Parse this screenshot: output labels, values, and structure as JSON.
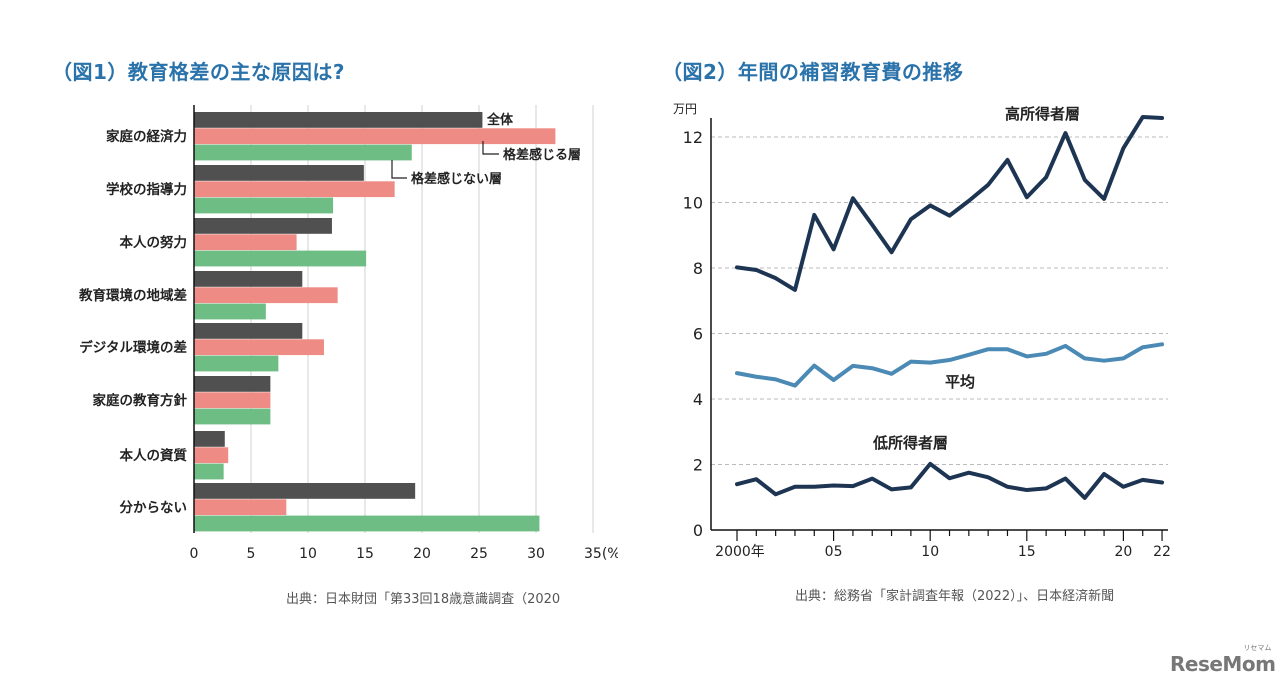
{
  "chart_data": [
    {
      "type": "bar",
      "orientation": "horizontal",
      "title": "（図1）教育格差の主な原因は?",
      "categories": [
        "家庭の経済力",
        "学校の指導力",
        "本人の努力",
        "教育環境の地域差",
        "デジタル環境の差",
        "家庭の教育方針",
        "本人の資質",
        "分からない"
      ],
      "series": [
        {
          "name": "全体",
          "color": "#505050",
          "values": [
            25.3,
            14.9,
            12.1,
            9.5,
            9.5,
            6.7,
            2.7,
            19.4
          ]
        },
        {
          "name": "格差感じる層",
          "color": "#ee8b84",
          "values": [
            31.7,
            17.6,
            9.0,
            12.6,
            11.4,
            6.7,
            3.0,
            8.1
          ]
        },
        {
          "name": "格差感じない層",
          "color": "#6dbd84",
          "values": [
            19.1,
            12.2,
            15.1,
            6.3,
            7.4,
            6.7,
            2.6,
            30.3
          ]
        }
      ],
      "xticks": [
        "0",
        "5",
        "10",
        "15",
        "20",
        "25",
        "30",
        "35(%)"
      ],
      "xlim": [
        0,
        35
      ],
      "unit": "%",
      "grid": true,
      "source": "出典：日本財団「第33回18歳意識調査（2020"
    },
    {
      "type": "line",
      "title": "（図2）年間の補習教育費の推移",
      "ylabel": "万円",
      "x": [
        2000,
        2001,
        2002,
        2003,
        2004,
        2005,
        2006,
        2007,
        2008,
        2009,
        2010,
        2011,
        2012,
        2013,
        2014,
        2015,
        2016,
        2017,
        2018,
        2019,
        2020,
        2021,
        2022
      ],
      "xticks": [
        {
          "year": 2000,
          "label": "2000年"
        },
        {
          "year": 2005,
          "label": "05"
        },
        {
          "year": 2010,
          "label": "10"
        },
        {
          "year": 2015,
          "label": "15"
        },
        {
          "year": 2020,
          "label": "20"
        },
        {
          "year": 2022,
          "label": "22"
        }
      ],
      "yticks": [
        "0",
        "2",
        "4",
        "6",
        "8",
        "10",
        "12"
      ],
      "ylim": [
        0,
        12.8
      ],
      "grid": "dashed horizontal",
      "series": [
        {
          "name": "高所得者層",
          "color": "#1d3553",
          "values": [
            8.02,
            7.94,
            7.69,
            7.33,
            9.62,
            8.57,
            10.13,
            9.32,
            8.48,
            9.49,
            9.91,
            9.6,
            10.05,
            10.54,
            11.3,
            10.16,
            10.77,
            12.12,
            10.69,
            10.11,
            11.66,
            12.61,
            12.58
          ]
        },
        {
          "name": "平均",
          "color": "#4a8ab5",
          "values": [
            4.79,
            4.68,
            4.6,
            4.41,
            5.02,
            4.58,
            5.01,
            4.94,
            4.77,
            5.14,
            5.11,
            5.19,
            5.35,
            5.52,
            5.52,
            5.3,
            5.38,
            5.62,
            5.24,
            5.17,
            5.24,
            5.58,
            5.67
          ]
        },
        {
          "name": "低所得者層",
          "color": "#1d3553",
          "values": [
            1.4,
            1.55,
            1.09,
            1.32,
            1.32,
            1.36,
            1.34,
            1.57,
            1.24,
            1.3,
            2.02,
            1.58,
            1.75,
            1.61,
            1.32,
            1.22,
            1.27,
            1.57,
            0.98,
            1.71,
            1.32,
            1.53,
            1.45
          ]
        }
      ],
      "source": "出典：総務省「家計調査年報（2022）」、日本経済新聞"
    }
  ],
  "logo": {
    "text": "ReseMom",
    "ruby": "リセマム"
  }
}
